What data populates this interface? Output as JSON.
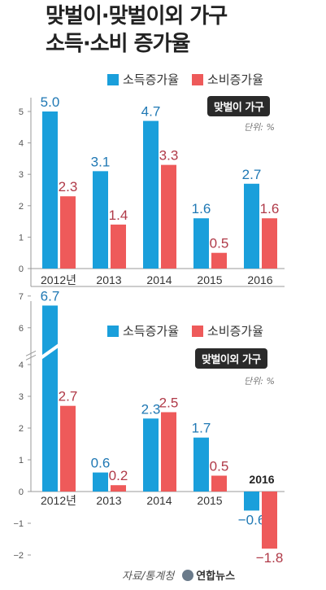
{
  "title": [
    "맞벌이·맞벌이외 가구",
    "소득·소비 증가율"
  ],
  "source": "자료/통계청",
  "logo": "연합뉴스",
  "colors": {
    "income": "#1a9fdb",
    "spending": "#ee5a5a",
    "income_label": "#1f78b4",
    "spending_label": "#b03a48"
  },
  "legend": {
    "income": "소득증가율",
    "spending": "소비증가율"
  },
  "chart_data": [
    {
      "type": "bar",
      "tag": "맞벌이 가구",
      "unit": "단위: %",
      "categories": [
        "2012년",
        "2013",
        "2014",
        "2015",
        "2016"
      ],
      "series": [
        {
          "name": "소득증가율",
          "values": [
            5.0,
            3.1,
            4.7,
            1.6,
            2.7
          ]
        },
        {
          "name": "소비증가율",
          "values": [
            2.3,
            1.4,
            3.3,
            0.5,
            1.6
          ]
        }
      ],
      "yticks": [
        0,
        1,
        2,
        3,
        4,
        5
      ],
      "ylim": [
        0,
        5.5
      ]
    },
    {
      "type": "bar",
      "tag": "맞벌이외 가구",
      "unit": "단위: %",
      "categories": [
        "2012년",
        "2013",
        "2014",
        "2015",
        "2016"
      ],
      "series": [
        {
          "name": "소득증가율",
          "values": [
            6.7,
            0.6,
            2.3,
            1.7,
            -0.6
          ]
        },
        {
          "name": "소비증가율",
          "values": [
            2.7,
            0.2,
            2.5,
            0.5,
            -1.8
          ]
        }
      ],
      "yticks": [
        -2,
        -1,
        0,
        1,
        2,
        3,
        4,
        6,
        7
      ],
      "ylim": [
        -2.1,
        7.4
      ],
      "axis_break": [
        4.3,
        5.7
      ]
    }
  ]
}
